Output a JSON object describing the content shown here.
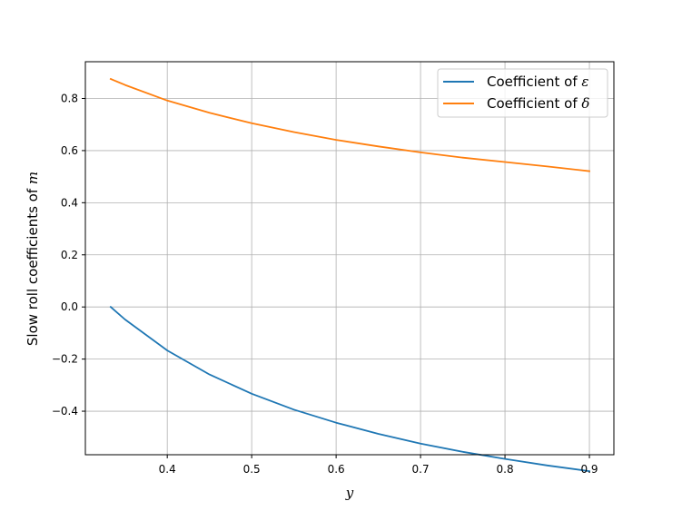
{
  "chart_data": {
    "type": "line",
    "xlabel": "y",
    "ylabel_prefix": "Slow roll coefficients of ",
    "ylabel_math": "m",
    "xlim": [
      0.303,
      0.929
    ],
    "ylim": [
      -0.567,
      0.941
    ],
    "xticks": [
      0.4,
      0.5,
      0.6,
      0.7,
      0.8,
      0.9
    ],
    "xtick_labels": [
      "0.4",
      "0.5",
      "0.6",
      "0.7",
      "0.8",
      "0.9"
    ],
    "yticks": [
      -0.4,
      -0.2,
      0.0,
      0.2,
      0.4,
      0.6,
      0.8
    ],
    "ytick_labels": [
      "−0.4",
      "−0.2",
      "0.0",
      "0.2",
      "0.4",
      "0.6",
      "0.8"
    ],
    "grid": true,
    "legend_position": "top-right",
    "series": [
      {
        "name_prefix": "Coefficient of ",
        "name_math": "ε",
        "color": "#1f77b4",
        "x": [
          0.333,
          0.35,
          0.4,
          0.45,
          0.5,
          0.55,
          0.6,
          0.65,
          0.7,
          0.75,
          0.8,
          0.85,
          0.9
        ],
        "y": [
          0.0,
          -0.048,
          -0.167,
          -0.259,
          -0.333,
          -0.394,
          -0.444,
          -0.487,
          -0.524,
          -0.556,
          -0.583,
          -0.608,
          -0.63
        ]
      },
      {
        "name_prefix": "Coefficient of ",
        "name_math": "δ",
        "color": "#ff7f0e",
        "x": [
          0.333,
          0.35,
          0.4,
          0.45,
          0.5,
          0.55,
          0.6,
          0.65,
          0.7,
          0.75,
          0.8,
          0.85,
          0.9
        ],
        "y": [
          0.875,
          0.852,
          0.792,
          0.745,
          0.705,
          0.671,
          0.641,
          0.616,
          0.593,
          0.573,
          0.556,
          0.539,
          0.521
        ]
      }
    ]
  }
}
